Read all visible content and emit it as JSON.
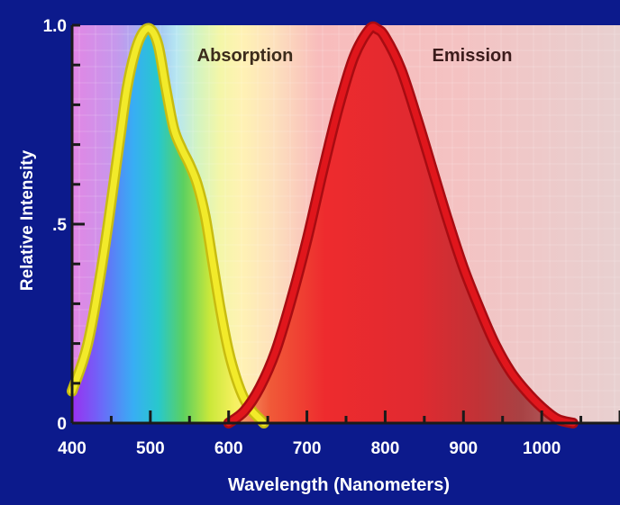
{
  "chart_data": {
    "type": "line",
    "title": "",
    "xlabel": "Wavelength (Nanometers)",
    "ylabel": "Relative Intensity",
    "xlim": [
      400,
      1100
    ],
    "ylim": [
      0,
      1.0
    ],
    "x_ticks": [
      400,
      500,
      600,
      700,
      800,
      900,
      1000
    ],
    "x_tick_labels": [
      "400",
      "500",
      "600",
      "700",
      "800",
      "900",
      "1000"
    ],
    "y_ticks": [
      0,
      0.5,
      1.0
    ],
    "y_tick_labels": [
      "0",
      ".5",
      "1.0"
    ],
    "grid": true,
    "series": [
      {
        "name": "Absorption",
        "color": "#f2ea2a",
        "x": [
          400,
          420,
          440,
          460,
          470,
          480,
          490,
          500,
          510,
          520,
          530,
          540,
          550,
          560,
          570,
          580,
          590,
          600,
          610,
          620,
          630,
          640,
          645
        ],
        "y": [
          0.08,
          0.2,
          0.42,
          0.7,
          0.84,
          0.93,
          0.98,
          0.99,
          0.95,
          0.84,
          0.74,
          0.69,
          0.65,
          0.6,
          0.52,
          0.4,
          0.28,
          0.18,
          0.11,
          0.06,
          0.03,
          0.01,
          0.0
        ]
      },
      {
        "name": "Emission",
        "color": "#e0161c",
        "x": [
          600,
          620,
          640,
          660,
          680,
          700,
          720,
          740,
          760,
          780,
          790,
          800,
          820,
          840,
          860,
          880,
          900,
          920,
          940,
          960,
          980,
          1000,
          1020,
          1040
        ],
        "y": [
          0.0,
          0.03,
          0.09,
          0.18,
          0.31,
          0.46,
          0.63,
          0.79,
          0.92,
          0.99,
          0.99,
          0.97,
          0.89,
          0.77,
          0.64,
          0.51,
          0.39,
          0.29,
          0.2,
          0.13,
          0.08,
          0.04,
          0.01,
          0.0
        ]
      }
    ]
  }
}
